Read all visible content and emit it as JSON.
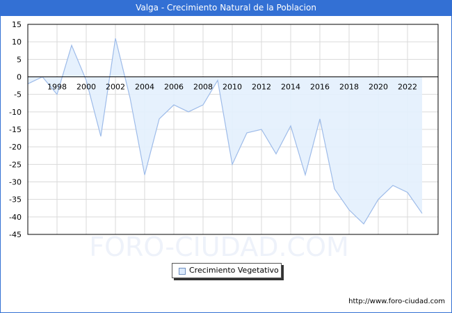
{
  "header": {
    "title": "Valga - Crecimiento Natural de la Poblacion"
  },
  "legend": {
    "label": "Crecimiento Vegetativo"
  },
  "footer": {
    "url": "http://www.foro-ciudad.com"
  },
  "watermark": "FORO-CIUDAD.COM",
  "colors": {
    "title_bar": "#3370d4",
    "line": "#9dbbe9",
    "fill": "#e3f0fd",
    "grid": "#d9d9d9"
  },
  "chart_data": {
    "type": "area",
    "title": "Valga - Crecimiento Natural de la Poblacion",
    "xlabel": "",
    "ylabel": "",
    "ylim": [
      -45,
      15
    ],
    "yticks": [
      15,
      10,
      5,
      0,
      -5,
      -10,
      -15,
      -20,
      -25,
      -30,
      -35,
      -40,
      -45
    ],
    "xticks": [
      1998,
      2000,
      2002,
      2004,
      2006,
      2008,
      2010,
      2012,
      2014,
      2016,
      2018,
      2020,
      2022
    ],
    "grid": true,
    "legend_position": "bottom",
    "x": [
      1996,
      1997,
      1998,
      1999,
      2000,
      2001,
      2002,
      2003,
      2004,
      2005,
      2006,
      2007,
      2008,
      2009,
      2010,
      2011,
      2012,
      2013,
      2014,
      2015,
      2016,
      2017,
      2018,
      2019,
      2020,
      2021,
      2022,
      2023
    ],
    "series": [
      {
        "name": "Crecimiento Vegetativo",
        "values": [
          -2,
          0,
          -5,
          9,
          -1,
          -17,
          11,
          -6,
          -28,
          -12,
          -8,
          -10,
          -8,
          -1,
          -25,
          -16,
          -15,
          -22,
          -14,
          -28,
          -12,
          -32,
          -38,
          -42,
          -35,
          -31,
          -33,
          -39
        ]
      }
    ]
  }
}
